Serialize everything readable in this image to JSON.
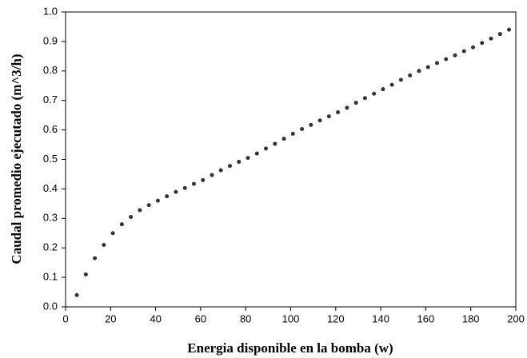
{
  "chart_data": {
    "type": "scatter",
    "xlabel": "Energia disponible en la bomba (w)",
    "ylabel": "Caudal promedio ejecutado (m^3/h)",
    "color": "#333333",
    "x": [
      5,
      9,
      13,
      17,
      21,
      25,
      29,
      33,
      37,
      41,
      45,
      49,
      53,
      57,
      61,
      65,
      69,
      73,
      77,
      81,
      85,
      89,
      93,
      97,
      101,
      105,
      109,
      113,
      117,
      121,
      125,
      129,
      133,
      137,
      141,
      145,
      149,
      153,
      157,
      161,
      165,
      169,
      173,
      177,
      181,
      185,
      189,
      193,
      197
    ],
    "values": [
      0.04,
      0.11,
      0.165,
      0.21,
      0.25,
      0.28,
      0.305,
      0.328,
      0.345,
      0.36,
      0.375,
      0.39,
      0.403,
      0.417,
      0.43,
      0.447,
      0.463,
      0.478,
      0.492,
      0.505,
      0.52,
      0.537,
      0.553,
      0.57,
      0.587,
      0.603,
      0.617,
      0.632,
      0.646,
      0.66,
      0.675,
      0.692,
      0.708,
      0.723,
      0.738,
      0.753,
      0.77,
      0.785,
      0.8,
      0.813,
      0.827,
      0.84,
      0.853,
      0.867,
      0.88,
      0.895,
      0.91,
      0.925,
      0.94
    ],
    "xlim": [
      0,
      200
    ],
    "xticks": [
      0,
      20,
      40,
      60,
      80,
      100,
      120,
      140,
      160,
      180,
      200
    ],
    "ylim": [
      0,
      1
    ],
    "yticks": [
      {
        "value": 0,
        "label": "0.0"
      },
      0.1,
      0.2,
      0.3,
      0.4,
      0.5,
      0.6,
      0.7,
      0.8,
      0.9,
      {
        "value": 1,
        "label": "1.0"
      }
    ]
  }
}
